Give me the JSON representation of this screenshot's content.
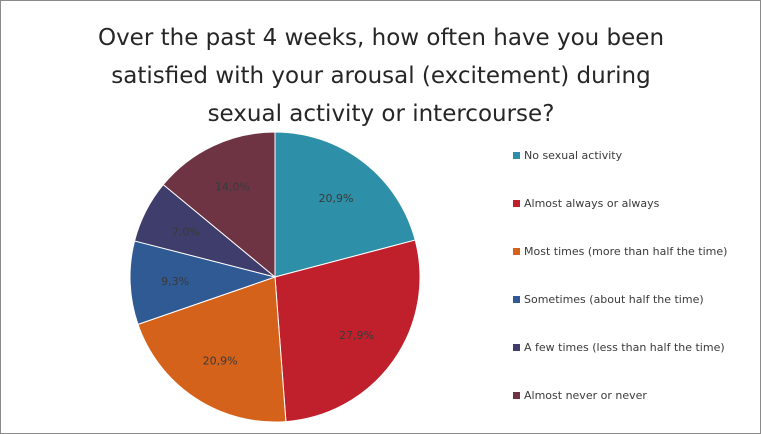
{
  "chart_data": {
    "type": "pie",
    "title_lines": [
      "Over the past 4 weeks, how often have you been",
      "satisfied with your arousal (excitement) during",
      "sexual activity or intercourse?"
    ],
    "categories": [
      "No sexual activity",
      "Almost always or always",
      "Most times (more than half the time)",
      "Sometimes (about half the time)",
      "A few times (less than half the time)",
      "Almost never or never"
    ],
    "values": [
      20.9,
      27.9,
      20.9,
      9.3,
      7.0,
      14.0
    ],
    "value_labels": [
      "20,9%",
      "27,9%",
      "20,9%",
      "9,3%",
      "7,0%",
      "14,0%"
    ],
    "colors": [
      "#2e8fa8",
      "#c0202b",
      "#d4621b",
      "#2f5a94",
      "#3e3d6b",
      "#6e3443"
    ],
    "legend_position": "right"
  }
}
